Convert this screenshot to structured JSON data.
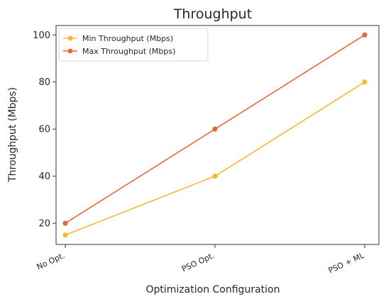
{
  "chart_data": {
    "type": "line",
    "title": "Throughput",
    "xlabel": "Optimization Configuration",
    "ylabel": "Throughput (Mbps)",
    "categories": [
      "No Opt.",
      "PSO Opt.",
      "PSO + ML"
    ],
    "series": [
      {
        "name": "Min Throughput (Mbps)",
        "values": [
          15,
          40,
          80
        ],
        "color": "#f5b82e"
      },
      {
        "name": "Max Throughput (Mbps)",
        "values": [
          20,
          60,
          100
        ],
        "color": "#e5683a"
      }
    ],
    "yticks": [
      20,
      40,
      60,
      80,
      100
    ],
    "ylim": [
      11,
      104
    ],
    "grid": false,
    "legend_position": "top-left"
  }
}
